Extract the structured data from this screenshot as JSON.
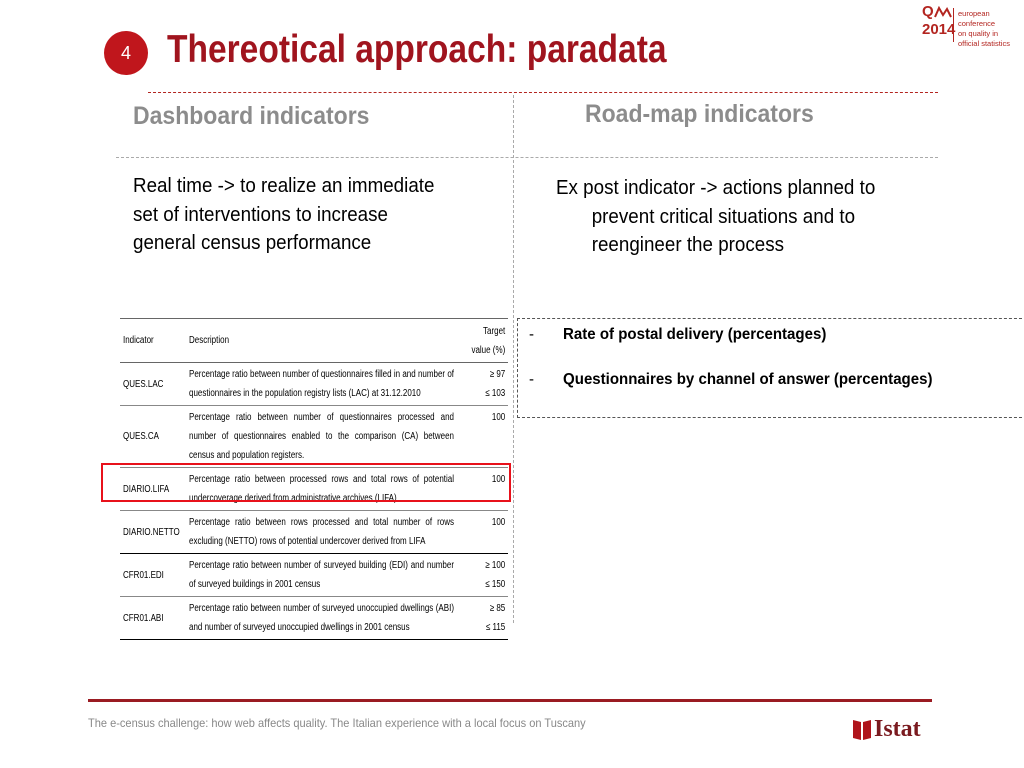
{
  "header": {
    "section_number": "4",
    "title": "Thereotical approach: paradata",
    "logo": {
      "brand": "Q",
      "year": "2014",
      "text_lines": [
        "european conference",
        "on quality in",
        "official statistics"
      ]
    }
  },
  "columns": {
    "left": {
      "heading": "Dashboard indicators",
      "text": [
        "Real time -> to realize an immediate",
        "set of interventions to increase",
        "general census performance"
      ]
    },
    "right": {
      "heading": "Road-map indicators",
      "text": [
        "Ex post indicator -> actions planned to",
        "prevent critical situations and to",
        "reengineer the process"
      ]
    }
  },
  "table": {
    "headers": {
      "indicator": "Indicator",
      "description": "Description",
      "target_line1": "Target",
      "target_line2": "value (%)"
    },
    "rows": [
      {
        "indicator": "QUES.LAC",
        "description": "Percentage ratio between number of questionnaires filled in and number of questionnaires in the population registry lists (LAC) at 31.12.2010",
        "target_line1": "≥ 97",
        "target_line2": "≤ 103"
      },
      {
        "indicator": "QUES.CA",
        "description": "Percentage ratio between number of questionnaires processed and number of questionnaires enabled to the comparison (CA) between census and population registers.",
        "target_line1": "100",
        "target_line2": ""
      },
      {
        "indicator": "DIARIO.LIFA",
        "description": "Percentage ratio between processed rows and total rows of potential undercoverage derived from administrative archives (LIFA)",
        "target_line1": "100",
        "target_line2": ""
      },
      {
        "indicator": "DIARIO.NETTO",
        "description": "Percentage ratio between rows processed and total number of rows excluding (NETTO) rows of potential undercover derived from LIFA",
        "target_line1": "100",
        "target_line2": ""
      },
      {
        "indicator": "CFR01.EDI",
        "description": "Percentage ratio between number of surveyed building (EDI) and number of surveyed buildings in 2001 census",
        "target_line1": "≥ 100",
        "target_line2": "≤ 150"
      },
      {
        "indicator": "CFR01.ABI",
        "description": "Percentage ratio between number of surveyed unoccupied dwellings (ABI) and number of surveyed unoccupied dwellings in 2001 census",
        "target_line1": "≥ 85",
        "target_line2": "≤ 115"
      }
    ]
  },
  "roadmap_items": [
    {
      "bullet": "-",
      "label": "Rate of postal delivery (percentages)"
    },
    {
      "bullet": "-",
      "label": "Questionnaires by channel of answer (percentages)"
    }
  ],
  "footer": {
    "text": "The e-census challenge: how web affects quality. The Italian experience with a local focus on Tuscany",
    "org": "Istat"
  },
  "colors": {
    "accent": "#a0141e",
    "highlight": "#e8111b",
    "heading_gray": "#8c8c8c"
  }
}
